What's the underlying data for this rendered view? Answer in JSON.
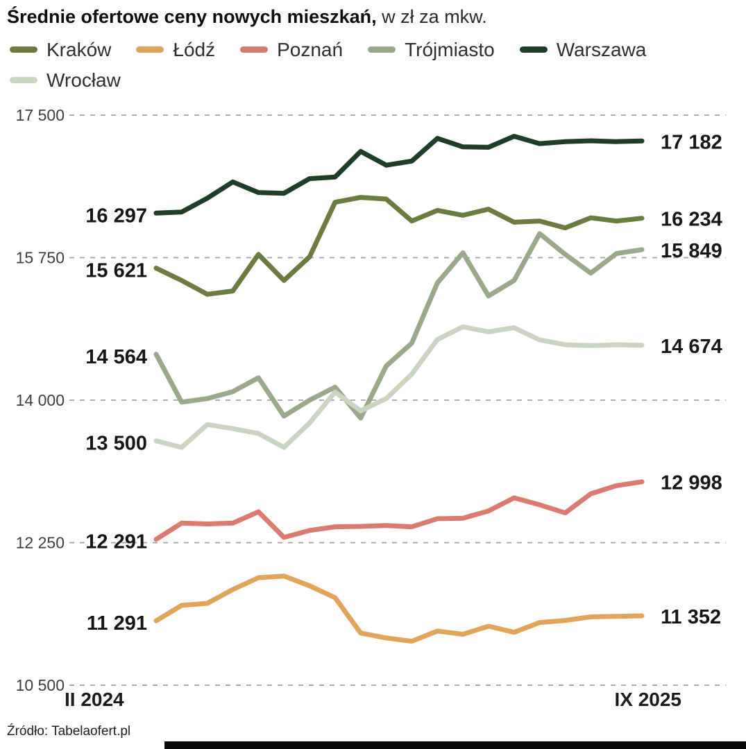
{
  "title": {
    "main": "Średnie ofertowe ceny nowych mieszkań,",
    "suffix": " w zł za mkw."
  },
  "source": "Źródło: Tabelaofert.pl",
  "legend": [
    {
      "id": "krakow",
      "label": "Kraków",
      "color": "#6d7b41"
    },
    {
      "id": "lodz",
      "label": "Łódź",
      "color": "#e0a45a"
    },
    {
      "id": "poznan",
      "label": "Poznań",
      "color": "#da7b72"
    },
    {
      "id": "trojmiasto",
      "label": "Trójmiasto",
      "color": "#9aa88c"
    },
    {
      "id": "warszawa",
      "label": "Warszawa",
      "color": "#1f3d28"
    },
    {
      "id": "wroclaw",
      "label": "Wrocław",
      "color": "#ccd3c3"
    }
  ],
  "chart_data": {
    "type": "line",
    "title": "Średnie ofertowe ceny nowych mieszkań, w zł za mkw.",
    "x_axis": {
      "start_label": "II 2024",
      "end_label": "IX 2025"
    },
    "y_ticks": [
      17500,
      15750,
      14000,
      12250,
      10500
    ],
    "y_tick_labels": [
      "17 500",
      "15 750",
      "14 000",
      "12 250",
      "10 500"
    ],
    "ylim": [
      10500,
      17500
    ],
    "grid": "dashed-horizontal",
    "legend_position": "top",
    "series": [
      {
        "id": "krakow",
        "name": "Kraków",
        "color": "#6d7b41",
        "start_label": "15 621",
        "end_label": "16 234",
        "values": [
          15621,
          15470,
          15300,
          15340,
          15790,
          15470,
          15760,
          16430,
          16490,
          16470,
          16200,
          16330,
          16270,
          16345,
          16185,
          16200,
          16115,
          16240,
          16200,
          16234
        ]
      },
      {
        "id": "lodz",
        "name": "Łódź",
        "color": "#e0a45a",
        "start_label": "11 291",
        "end_label": "11 352",
        "values": [
          11291,
          11480,
          11505,
          11675,
          11820,
          11840,
          11720,
          11575,
          11140,
          11080,
          11040,
          11165,
          11125,
          11225,
          11150,
          11270,
          11295,
          11340,
          11345,
          11352
        ]
      },
      {
        "id": "poznan",
        "name": "Poznań",
        "color": "#da7b72",
        "start_label": "12 291",
        "end_label": "12 998",
        "values": [
          12291,
          12490,
          12480,
          12490,
          12630,
          12315,
          12400,
          12445,
          12450,
          12460,
          12445,
          12545,
          12550,
          12640,
          12800,
          12715,
          12615,
          12850,
          12950,
          12998
        ]
      },
      {
        "id": "trojmiasto",
        "name": "Trójmiasto",
        "color": "#9aa88c",
        "start_label": "14 564",
        "end_label": "15 849",
        "values": [
          14564,
          13975,
          14020,
          14105,
          14275,
          13805,
          14000,
          14160,
          13780,
          14420,
          14700,
          15440,
          15810,
          15280,
          15470,
          16045,
          15790,
          15560,
          15800,
          15849
        ]
      },
      {
        "id": "warszawa",
        "name": "Warszawa",
        "color": "#1f3d28",
        "start_label": "16 297",
        "end_label": "17 182",
        "values": [
          16297,
          16310,
          16480,
          16680,
          16550,
          16540,
          16720,
          16740,
          17055,
          16885,
          16935,
          17215,
          17110,
          17105,
          17240,
          17150,
          17175,
          17185,
          17175,
          17182
        ]
      },
      {
        "id": "wroclaw",
        "name": "Wrocław",
        "color": "#ccd3c3",
        "start_label": "13 500",
        "end_label": "14 674",
        "values": [
          13500,
          13420,
          13700,
          13650,
          13590,
          13420,
          13720,
          14100,
          13870,
          14020,
          14320,
          14745,
          14900,
          14840,
          14890,
          14740,
          14680,
          14670,
          14680,
          14674
        ]
      }
    ]
  }
}
